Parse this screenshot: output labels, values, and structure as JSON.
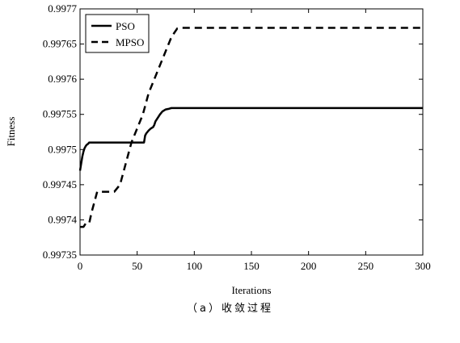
{
  "chart_data": {
    "type": "line",
    "title": "",
    "xlabel": "Iterations",
    "ylabel": "Fitness",
    "xlim": [
      0,
      300
    ],
    "ylim": [
      0.99735,
      0.9977
    ],
    "grid": false,
    "legend_position": "top-left",
    "x_ticks": [
      0,
      50,
      100,
      150,
      200,
      250,
      300
    ],
    "x_tick_labels": [
      "0",
      "50",
      "100",
      "150",
      "200",
      "250",
      "300"
    ],
    "y_ticks": [
      0.99735,
      0.9974,
      0.99745,
      0.9975,
      0.99755,
      0.9976,
      0.99765,
      0.9977
    ],
    "y_tick_labels": [
      "0.99735",
      "0.9974",
      "0.99745",
      "0.9975",
      "0.99755",
      "0.9976",
      "0.99765",
      "0.9977"
    ],
    "series": [
      {
        "name": "PSO",
        "line_style": "solid",
        "color": "#000000",
        "x": [
          0,
          1,
          2,
          3,
          4,
          5,
          6,
          7,
          8,
          9,
          10,
          12,
          15,
          20,
          30,
          40,
          50,
          53,
          55,
          56,
          57,
          58,
          60,
          62,
          64,
          65,
          66,
          68,
          70,
          72,
          75,
          78,
          80,
          100,
          150,
          200,
          250,
          300
        ],
        "y": [
          0.99747,
          0.99748,
          0.99749,
          0.997497,
          0.997502,
          0.997505,
          0.997507,
          0.997508,
          0.99751,
          0.99751,
          0.99751,
          0.99751,
          0.99751,
          0.99751,
          0.99751,
          0.99751,
          0.99751,
          0.99751,
          0.99751,
          0.99751,
          0.99752,
          0.997523,
          0.997527,
          0.99753,
          0.997532,
          0.997535,
          0.99754,
          0.997545,
          0.99755,
          0.997554,
          0.997557,
          0.997558,
          0.997559,
          0.997559,
          0.997559,
          0.997559,
          0.997559,
          0.997559
        ]
      },
      {
        "name": "MPSO",
        "line_style": "dashed",
        "color": "#000000",
        "x": [
          0,
          3,
          5,
          8,
          10,
          15,
          20,
          25,
          30,
          35,
          40,
          45,
          50,
          55,
          60,
          65,
          70,
          75,
          80,
          85,
          88,
          90,
          100,
          150,
          200,
          250,
          300
        ],
        "y": [
          0.99739,
          0.99739,
          0.997395,
          0.997395,
          0.99741,
          0.99744,
          0.99744,
          0.99744,
          0.99744,
          0.99745,
          0.99748,
          0.99751,
          0.99753,
          0.99755,
          0.99758,
          0.9976,
          0.99762,
          0.99764,
          0.99766,
          0.997672,
          0.997673,
          0.997673,
          0.997673,
          0.997673,
          0.997673,
          0.997673,
          0.997673
        ]
      }
    ]
  },
  "caption": "（a）收敛过程"
}
